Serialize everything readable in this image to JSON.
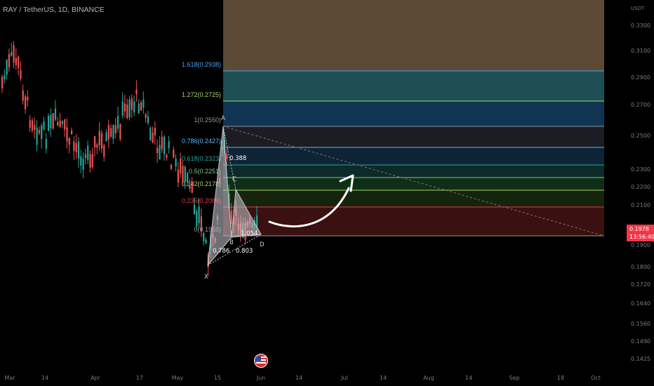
{
  "header": {
    "title": "RAY / TetherUS, 1D, BINANCE"
  },
  "price_axis": {
    "unit": "USDT",
    "labels": [
      "0.3300",
      "0.3100",
      "0.2900",
      "0.2700",
      "0.2500",
      "0.2300",
      "0.2200",
      "0.2100",
      "0.1900",
      "0.1800",
      "0.1720",
      "0.1640",
      "0.1560",
      "0.1490",
      "0.1425"
    ]
  },
  "current_price": {
    "value": "0.1978",
    "countdown": "13:56:40",
    "color": "#f23645"
  },
  "time_axis": {
    "labels": [
      "Mar",
      "14",
      "Apr",
      "17",
      "May",
      "15",
      "Jun",
      "14",
      "Jul",
      "14",
      "Aug",
      "14",
      "Sep",
      "18",
      "Oct"
    ]
  },
  "fib_levels": [
    {
      "label": "1.618(0.2938)",
      "color": "#42a5f5"
    },
    {
      "label": "1.272(0.2725)",
      "color": "#a5d66f"
    },
    {
      "label": "1(0.2550)",
      "color": "#9598a1"
    },
    {
      "label": "0.786(0.2427)",
      "color": "#64b5f6"
    },
    {
      "label": "0.618(0.2323)",
      "color": "#26a69a"
    },
    {
      "label": "0.5(0.2251)",
      "color": "#81c784"
    },
    {
      "label": "0.382(0.2178)",
      "color": "#a5d66f"
    },
    {
      "label": "0.236(0.2086)",
      "color": "#f23645"
    },
    {
      "label": "0(0.1955)",
      "color": "#9598a1"
    }
  ],
  "pattern": {
    "points": [
      "X",
      "A",
      "B",
      "C",
      "D"
    ],
    "ratios": {
      "xb": "0.786",
      "ac": "0.388",
      "bd": "0.803",
      "xd": "1.054"
    }
  },
  "colors": {
    "up": "#26a69a",
    "down": "#ef5350"
  },
  "icons": {
    "event": "us-flag-icon",
    "arrow": "curved-arrow-icon"
  }
}
